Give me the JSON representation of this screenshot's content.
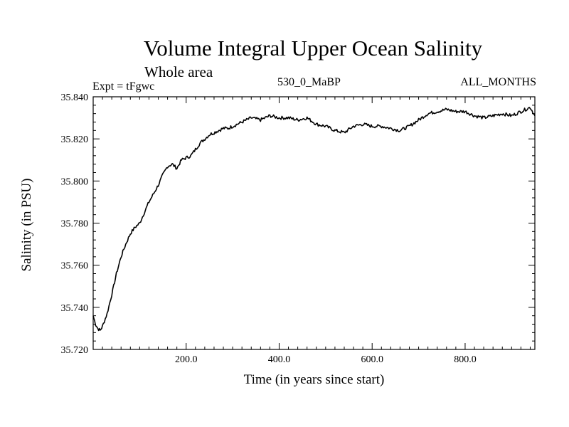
{
  "chart_data": {
    "type": "line",
    "title": "Volume Integral Upper Ocean Salinity",
    "subtitle": "Whole area",
    "expt_label": "Expt = tFgwc",
    "experiment": "530_0_MaBP",
    "months": "ALL_MONTHS",
    "xlabel": "Time (in years since start)",
    "ylabel": "Salinity (in PSU)",
    "xlim": [
      0,
      950
    ],
    "ylim": [
      35.72,
      35.84
    ],
    "x_ticks": [
      {
        "value": 200,
        "label": "200.0"
      },
      {
        "value": 400,
        "label": "400.0"
      },
      {
        "value": 600,
        "label": "600.0"
      },
      {
        "value": 800,
        "label": "800.0"
      }
    ],
    "y_ticks": [
      {
        "value": 35.72,
        "label": "35.720"
      },
      {
        "value": 35.74,
        "label": "35.740"
      },
      {
        "value": 35.76,
        "label": "35.760"
      },
      {
        "value": 35.78,
        "label": "35.780"
      },
      {
        "value": 35.8,
        "label": "35.800"
      },
      {
        "value": 35.82,
        "label": "35.820"
      },
      {
        "value": 35.84,
        "label": "35.840"
      }
    ],
    "series": [
      {
        "name": "Salinity",
        "x": [
          0,
          5,
          10,
          15,
          20,
          30,
          40,
          50,
          60,
          70,
          80,
          90,
          100,
          110,
          120,
          130,
          140,
          150,
          160,
          170,
          180,
          190,
          200,
          210,
          220,
          230,
          240,
          250,
          260,
          270,
          280,
          290,
          300,
          320,
          340,
          360,
          380,
          400,
          420,
          440,
          460,
          480,
          500,
          520,
          540,
          560,
          580,
          600,
          620,
          640,
          660,
          680,
          700,
          720,
          740,
          760,
          780,
          800,
          820,
          840,
          860,
          880,
          900,
          920,
          940,
          950
        ],
        "y": [
          35.736,
          35.732,
          35.73,
          35.729,
          35.731,
          35.737,
          35.746,
          35.756,
          35.764,
          35.77,
          35.775,
          35.778,
          35.78,
          35.785,
          35.79,
          35.794,
          35.798,
          35.803,
          35.807,
          35.808,
          35.806,
          35.81,
          35.811,
          35.812,
          35.815,
          35.818,
          35.82,
          35.822,
          35.823,
          35.824,
          35.825,
          35.825,
          35.826,
          35.828,
          35.83,
          35.829,
          35.831,
          35.83,
          35.83,
          35.829,
          35.83,
          35.827,
          35.826,
          35.824,
          35.823,
          35.826,
          35.827,
          35.826,
          35.826,
          35.825,
          35.824,
          35.826,
          35.829,
          35.832,
          35.833,
          35.834,
          35.833,
          35.833,
          35.831,
          35.83,
          35.831,
          35.832,
          35.831,
          35.833,
          35.835,
          35.831
        ]
      }
    ]
  }
}
